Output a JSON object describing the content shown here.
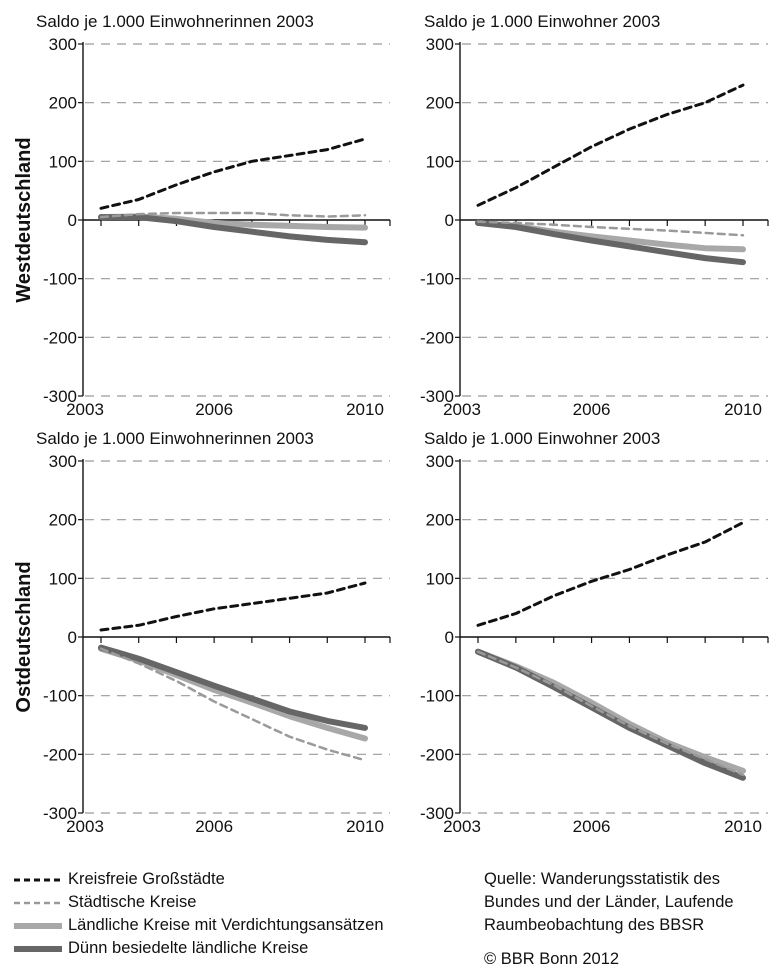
{
  "colors": {
    "kreisfrei": "#111111",
    "staedtisch": "#9a9a9a",
    "laendlich_verdichtung": "#a8a8a8",
    "duenn": "#666666",
    "grid": "#9a9a9a",
    "axis": "#111111"
  },
  "row_labels": [
    "Westdeutschland",
    "Ostdeutschland"
  ],
  "legend": [
    {
      "key": "kreisfrei",
      "label": "Kreisfreie Großstädte",
      "style": "dash-thick"
    },
    {
      "key": "staedtisch",
      "label": "Städtische Kreise",
      "style": "dash-thin"
    },
    {
      "key": "laendlich_verdichtung",
      "label": "Ländliche Kreise mit Verdichtungsansätzen",
      "style": "solid-thick"
    },
    {
      "key": "duenn",
      "label": "Dünn besiedelte ländliche Kreise",
      "style": "solid-thick"
    }
  ],
  "source_lines": [
    "Quelle: Wanderungsstatistik des",
    "Bundes und der Länder, Laufende",
    "Raumbeobachtung des BBSR"
  ],
  "copyright": "© BBR Bonn 2012",
  "chart_data": [
    {
      "type": "line",
      "title": "Saldo je 1.000 Einwohnerinnen 2003",
      "region": "Westdeutschland",
      "x": [
        2003,
        2004,
        2005,
        2006,
        2007,
        2008,
        2009,
        2010
      ],
      "x_ticks": [
        "2003",
        "2006",
        "2010"
      ],
      "y_ticks": [
        "300",
        "200",
        "100",
        "0",
        "-100",
        "-200",
        "-300"
      ],
      "ylim": [
        -300,
        300
      ],
      "grid": true,
      "series": [
        {
          "name": "Kreisfreie Großstädte",
          "key": "kreisfrei",
          "values": [
            20,
            35,
            60,
            82,
            100,
            110,
            120,
            138
          ]
        },
        {
          "name": "Städtische Kreise",
          "key": "staedtisch",
          "values": [
            5,
            10,
            12,
            12,
            12,
            8,
            6,
            8
          ]
        },
        {
          "name": "Ländliche Kreise mit Verdichtungsansätzen",
          "key": "laendlich_verdichtung",
          "values": [
            5,
            6,
            2,
            -5,
            -8,
            -10,
            -12,
            -13
          ]
        },
        {
          "name": "Dünn besiedelte ländliche Kreise",
          "key": "duenn",
          "values": [
            5,
            5,
            -2,
            -12,
            -20,
            -28,
            -34,
            -38
          ]
        }
      ]
    },
    {
      "type": "line",
      "title": "Saldo je 1.000 Einwohner 2003",
      "region": "Westdeutschland",
      "x": [
        2003,
        2004,
        2005,
        2006,
        2007,
        2008,
        2009,
        2010
      ],
      "x_ticks": [
        "2003",
        "2006",
        "2010"
      ],
      "y_ticks": [
        "300",
        "200",
        "100",
        "0",
        "-100",
        "-200",
        "-300"
      ],
      "ylim": [
        -300,
        300
      ],
      "grid": true,
      "series": [
        {
          "name": "Kreisfreie Großstädte",
          "key": "kreisfrei",
          "values": [
            25,
            55,
            90,
            125,
            155,
            180,
            200,
            230
          ]
        },
        {
          "name": "Städtische Kreise",
          "key": "staedtisch",
          "values": [
            -3,
            -5,
            -8,
            -12,
            -15,
            -18,
            -22,
            -26
          ]
        },
        {
          "name": "Ländliche Kreise mit Verdichtungsansätzen",
          "key": "laendlich_verdichtung",
          "values": [
            -5,
            -10,
            -20,
            -28,
            -35,
            -42,
            -48,
            -50
          ]
        },
        {
          "name": "Dünn besiedelte ländliche Kreise",
          "key": "duenn",
          "values": [
            -5,
            -12,
            -24,
            -35,
            -45,
            -55,
            -65,
            -72
          ]
        }
      ]
    },
    {
      "type": "line",
      "title": "Saldo je 1.000 Einwohnerinnen 2003",
      "region": "Ostdeutschland",
      "x": [
        2003,
        2004,
        2005,
        2006,
        2007,
        2008,
        2009,
        2010
      ],
      "x_ticks": [
        "2003",
        "2006",
        "2010"
      ],
      "y_ticks": [
        "300",
        "200",
        "100",
        "0",
        "-100",
        "-200",
        "-300"
      ],
      "ylim": [
        -300,
        300
      ],
      "grid": true,
      "series": [
        {
          "name": "Kreisfreie Großstädte",
          "key": "kreisfrei",
          "values": [
            12,
            20,
            35,
            48,
            57,
            66,
            75,
            92
          ]
        },
        {
          "name": "Städtische Kreise",
          "key": "staedtisch",
          "values": [
            -20,
            -45,
            -75,
            -110,
            -140,
            -170,
            -192,
            -210
          ]
        },
        {
          "name": "Ländliche Kreise mit Verdichtungsansätzen",
          "key": "laendlich_verdichtung",
          "values": [
            -20,
            -40,
            -65,
            -90,
            -112,
            -135,
            -155,
            -173
          ]
        },
        {
          "name": "Dünn besiedelte ländliche Kreise",
          "key": "duenn",
          "values": [
            -18,
            -37,
            -60,
            -83,
            -105,
            -127,
            -143,
            -155
          ]
        }
      ]
    },
    {
      "type": "line",
      "title": "Saldo je 1.000 Einwohner 2003",
      "region": "Ostdeutschland",
      "x": [
        2003,
        2004,
        2005,
        2006,
        2007,
        2008,
        2009,
        2010
      ],
      "x_ticks": [
        "2003",
        "2006",
        "2010"
      ],
      "y_ticks": [
        "300",
        "200",
        "100",
        "0",
        "-100",
        "-200",
        "-300"
      ],
      "ylim": [
        -300,
        300
      ],
      "grid": true,
      "series": [
        {
          "name": "Kreisfreie Großstädte",
          "key": "kreisfrei",
          "values": [
            20,
            40,
            70,
            95,
            115,
            140,
            162,
            195
          ]
        },
        {
          "name": "Städtische Kreise",
          "key": "staedtisch",
          "values": [
            -25,
            -52,
            -82,
            -118,
            -152,
            -182,
            -208,
            -235
          ]
        },
        {
          "name": "Ländliche Kreise mit Verdichtungsansätzen",
          "key": "laendlich_verdichtung",
          "values": [
            -25,
            -50,
            -78,
            -112,
            -148,
            -180,
            -205,
            -228
          ]
        },
        {
          "name": "Dünn besiedelte ländliche Kreise",
          "key": "duenn",
          "values": [
            -25,
            -52,
            -85,
            -120,
            -155,
            -185,
            -215,
            -240
          ]
        }
      ]
    }
  ]
}
